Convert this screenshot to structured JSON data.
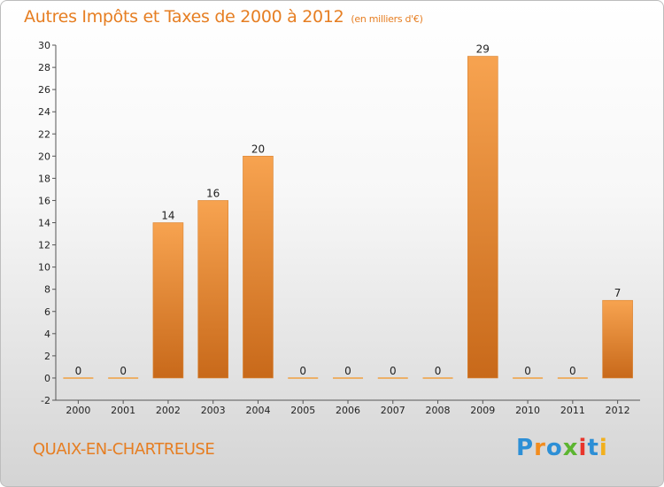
{
  "title": "Autres Impôts et Taxes de 2000 à 2012",
  "subtitle": "(en milliers d'€)",
  "location": "QUAIX-EN-CHARTREUSE",
  "logo": {
    "letters": [
      "P",
      "r",
      "o",
      "x",
      "i",
      "t",
      "i"
    ],
    "colors": [
      "#2d8fd6",
      "#f28c1e",
      "#2d8fd6",
      "#5cb531",
      "#e8352b",
      "#2d8fd6",
      "#f2b01e"
    ]
  },
  "colors": {
    "accent": "#e67e22",
    "bar_top": "#f7a350",
    "bar_bottom": "#c8691a",
    "zero_line": "#f0a040"
  },
  "chart_data": {
    "type": "bar",
    "categories": [
      "2000",
      "2001",
      "2002",
      "2003",
      "2004",
      "2005",
      "2006",
      "2007",
      "2008",
      "2009",
      "2010",
      "2011",
      "2012"
    ],
    "values": [
      0,
      0,
      14,
      16,
      20,
      0,
      0,
      0,
      0,
      29,
      0,
      0,
      7
    ],
    "ylim": [
      -2,
      30
    ],
    "yticks": [
      -2,
      0,
      2,
      4,
      6,
      8,
      10,
      12,
      14,
      16,
      18,
      20,
      22,
      24,
      26,
      28,
      30
    ],
    "grid": false,
    "legend": "none"
  }
}
